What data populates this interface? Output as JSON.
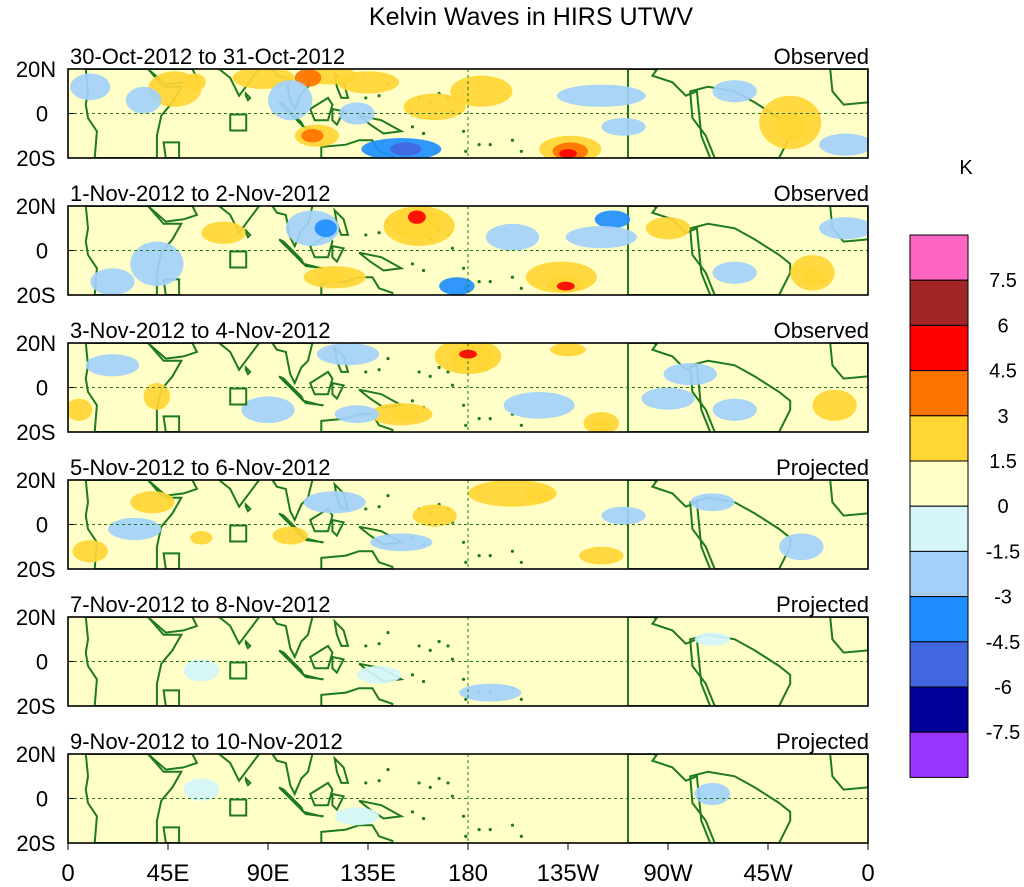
{
  "chart_data": {
    "type": "heatmap",
    "title": "Kelvin Waves in HIRS UTWV",
    "variable_unit": "K",
    "colorbar": {
      "levels": [
        "7.5",
        "6",
        "4.5",
        "3",
        "1.5",
        "0",
        "-1.5",
        "-3",
        "-4.5",
        "-6",
        "-7.5"
      ],
      "colors": [
        "#ff66c4",
        "#a32626",
        "#ff0000",
        "#ff7300",
        "#ffd633",
        "#ffffc7",
        "#d4f5fa",
        "#a3d1fa",
        "#1f8fff",
        "#4066e0",
        "#000099",
        "#9933ff"
      ]
    },
    "x_ticks": [
      "0",
      "45E",
      "90E",
      "135E",
      "180",
      "135W",
      "90W",
      "45W",
      "0"
    ],
    "y_ticks": [
      "20N",
      "0",
      "20S"
    ],
    "x_range_deg_east": [
      0,
      360
    ],
    "y_range_deg": [
      -20,
      20
    ],
    "panels": [
      {
        "period": "30-Oct-2012 to 31-Oct-2012",
        "status": "Observed",
        "anomalies": [
          {
            "lon": 48,
            "lat": 11,
            "rx": 12,
            "ry": 8,
            "value": 2
          },
          {
            "lon": 57,
            "lat": 14,
            "rx": 5,
            "ry": 4,
            "value": 3
          },
          {
            "lon": 10,
            "lat": 12,
            "rx": 9,
            "ry": 6,
            "value": -2
          },
          {
            "lon": 34,
            "lat": 6,
            "rx": 8,
            "ry": 6,
            "value": -2
          },
          {
            "lon": 88,
            "lat": 16,
            "rx": 14,
            "ry": 5,
            "value": 2
          },
          {
            "lon": 118,
            "lat": 17,
            "rx": 12,
            "ry": 4,
            "value": 3
          },
          {
            "lon": 108,
            "lat": 16,
            "rx": 6,
            "ry": 4,
            "value": 4
          },
          {
            "lon": 135,
            "lat": 14,
            "rx": 14,
            "ry": 5,
            "value": 2
          },
          {
            "lon": 100,
            "lat": 6,
            "rx": 10,
            "ry": 9,
            "value": -2
          },
          {
            "lon": 112,
            "lat": -10,
            "rx": 10,
            "ry": 5,
            "value": 2
          },
          {
            "lon": 110,
            "lat": -10,
            "rx": 5,
            "ry": 3,
            "value": 4
          },
          {
            "lon": 150,
            "lat": -16,
            "rx": 18,
            "ry": 5,
            "value": -3
          },
          {
            "lon": 152,
            "lat": -16,
            "rx": 7,
            "ry": 3,
            "value": -5
          },
          {
            "lon": 130,
            "lat": 0,
            "rx": 8,
            "ry": 5,
            "value": -2
          },
          {
            "lon": 165,
            "lat": 3,
            "rx": 14,
            "ry": 6,
            "value": 2
          },
          {
            "lon": 186,
            "lat": 10,
            "rx": 14,
            "ry": 7,
            "value": 2
          },
          {
            "lon": 226,
            "lat": -16,
            "rx": 14,
            "ry": 6,
            "value": 2
          },
          {
            "lon": 226,
            "lat": -17,
            "rx": 8,
            "ry": 4,
            "value": 4
          },
          {
            "lon": 225,
            "lat": -18,
            "rx": 4,
            "ry": 2,
            "value": 6
          },
          {
            "lon": 240,
            "lat": 8,
            "rx": 20,
            "ry": 5,
            "value": -2
          },
          {
            "lon": 250,
            "lat": -6,
            "rx": 10,
            "ry": 4,
            "value": -2
          },
          {
            "lon": 325,
            "lat": -4,
            "rx": 14,
            "ry": 12,
            "value": 2
          },
          {
            "lon": 325,
            "lat": -6,
            "rx": 7,
            "ry": 6,
            "value": 3
          },
          {
            "lon": 300,
            "lat": 10,
            "rx": 10,
            "ry": 5,
            "value": -2
          },
          {
            "lon": 350,
            "lat": -14,
            "rx": 12,
            "ry": 5,
            "value": -2
          }
        ]
      },
      {
        "period": "1-Nov-2012 to 2-Nov-2012",
        "status": "Observed",
        "anomalies": [
          {
            "lon": 40,
            "lat": -6,
            "rx": 12,
            "ry": 10,
            "value": -2
          },
          {
            "lon": 70,
            "lat": 8,
            "rx": 10,
            "ry": 5,
            "value": 2
          },
          {
            "lon": 20,
            "lat": -14,
            "rx": 10,
            "ry": 6,
            "value": -2
          },
          {
            "lon": 110,
            "lat": 10,
            "rx": 12,
            "ry": 8,
            "value": -2
          },
          {
            "lon": 116,
            "lat": 10,
            "rx": 5,
            "ry": 4,
            "value": -4
          },
          {
            "lon": 158,
            "lat": 11,
            "rx": 16,
            "ry": 9,
            "value": 2
          },
          {
            "lon": 157,
            "lat": 12,
            "rx": 11,
            "ry": 7,
            "value": 3
          },
          {
            "lon": 157,
            "lat": 15,
            "rx": 4,
            "ry": 3,
            "value": 5
          },
          {
            "lon": 120,
            "lat": -12,
            "rx": 14,
            "ry": 5,
            "value": 2
          },
          {
            "lon": 118,
            "lat": -12,
            "rx": 6,
            "ry": 3,
            "value": 3
          },
          {
            "lon": 175,
            "lat": -16,
            "rx": 8,
            "ry": 4,
            "value": -3
          },
          {
            "lon": 200,
            "lat": 6,
            "rx": 12,
            "ry": 6,
            "value": -2
          },
          {
            "lon": 222,
            "lat": -12,
            "rx": 16,
            "ry": 7,
            "value": 2
          },
          {
            "lon": 224,
            "lat": -15,
            "rx": 8,
            "ry": 4,
            "value": 3
          },
          {
            "lon": 224,
            "lat": -16,
            "rx": 4,
            "ry": 2,
            "value": 5
          },
          {
            "lon": 245,
            "lat": 14,
            "rx": 8,
            "ry": 4,
            "value": -3
          },
          {
            "lon": 240,
            "lat": 6,
            "rx": 16,
            "ry": 5,
            "value": -2
          },
          {
            "lon": 270,
            "lat": 10,
            "rx": 10,
            "ry": 5,
            "value": 2
          },
          {
            "lon": 335,
            "lat": -10,
            "rx": 10,
            "ry": 8,
            "value": 2
          },
          {
            "lon": 335,
            "lat": -12,
            "rx": 5,
            "ry": 4,
            "value": 3
          },
          {
            "lon": 300,
            "lat": -10,
            "rx": 10,
            "ry": 5,
            "value": -2
          },
          {
            "lon": 350,
            "lat": 10,
            "rx": 12,
            "ry": 5,
            "value": -2
          }
        ]
      },
      {
        "period": "3-Nov-2012 to 4-Nov-2012",
        "status": "Observed",
        "anomalies": [
          {
            "lon": 40,
            "lat": -4,
            "rx": 6,
            "ry": 6,
            "value": 2
          },
          {
            "lon": 5,
            "lat": -10,
            "rx": 6,
            "ry": 5,
            "value": 2
          },
          {
            "lon": 20,
            "lat": 10,
            "rx": 12,
            "ry": 5,
            "value": -2
          },
          {
            "lon": 126,
            "lat": 15,
            "rx": 14,
            "ry": 5,
            "value": -2
          },
          {
            "lon": 90,
            "lat": -10,
            "rx": 12,
            "ry": 6,
            "value": -2
          },
          {
            "lon": 180,
            "lat": 14,
            "rx": 15,
            "ry": 8,
            "value": 2
          },
          {
            "lon": 182,
            "lat": 13,
            "rx": 10,
            "ry": 6,
            "value": 3
          },
          {
            "lon": 180,
            "lat": 15,
            "rx": 4,
            "ry": 2,
            "value": 5
          },
          {
            "lon": 150,
            "lat": -12,
            "rx": 14,
            "ry": 5,
            "value": 2
          },
          {
            "lon": 152,
            "lat": -12,
            "rx": 6,
            "ry": 3,
            "value": 3
          },
          {
            "lon": 130,
            "lat": -12,
            "rx": 10,
            "ry": 4,
            "value": -2
          },
          {
            "lon": 225,
            "lat": 17,
            "rx": 8,
            "ry": 3,
            "value": 2
          },
          {
            "lon": 212,
            "lat": -8,
            "rx": 16,
            "ry": 6,
            "value": -2
          },
          {
            "lon": 240,
            "lat": -16,
            "rx": 8,
            "ry": 5,
            "value": 2
          },
          {
            "lon": 240,
            "lat": -17,
            "rx": 4,
            "ry": 3,
            "value": 3
          },
          {
            "lon": 280,
            "lat": 6,
            "rx": 12,
            "ry": 5,
            "value": -2
          },
          {
            "lon": 300,
            "lat": -10,
            "rx": 10,
            "ry": 5,
            "value": -2
          },
          {
            "lon": 345,
            "lat": -8,
            "rx": 10,
            "ry": 7,
            "value": 2
          },
          {
            "lon": 270,
            "lat": -5,
            "rx": 12,
            "ry": 5,
            "value": -2
          }
        ]
      },
      {
        "period": "5-Nov-2012 to 6-Nov-2012",
        "status": "Projected",
        "anomalies": [
          {
            "lon": 200,
            "lat": 14,
            "rx": 20,
            "ry": 6,
            "value": 2
          },
          {
            "lon": 211,
            "lat": 13,
            "rx": 6,
            "ry": 3,
            "value": 3
          },
          {
            "lon": 60,
            "lat": -6,
            "rx": 5,
            "ry": 3,
            "value": 2
          },
          {
            "lon": 10,
            "lat": -12,
            "rx": 8,
            "ry": 5,
            "value": 2
          },
          {
            "lon": 38,
            "lat": 10,
            "rx": 10,
            "ry": 5,
            "value": 2
          },
          {
            "lon": 30,
            "lat": -2,
            "rx": 12,
            "ry": 5,
            "value": -2
          },
          {
            "lon": 120,
            "lat": 10,
            "rx": 14,
            "ry": 5,
            "value": -2
          },
          {
            "lon": 150,
            "lat": -8,
            "rx": 14,
            "ry": 4,
            "value": -2
          },
          {
            "lon": 100,
            "lat": -5,
            "rx": 8,
            "ry": 4,
            "value": 2
          },
          {
            "lon": 165,
            "lat": 4,
            "rx": 10,
            "ry": 5,
            "value": 2
          },
          {
            "lon": 240,
            "lat": -14,
            "rx": 10,
            "ry": 4,
            "value": 2
          },
          {
            "lon": 330,
            "lat": -10,
            "rx": 10,
            "ry": 6,
            "value": -2
          },
          {
            "lon": 290,
            "lat": 10,
            "rx": 10,
            "ry": 4,
            "value": -2
          },
          {
            "lon": 250,
            "lat": 4,
            "rx": 10,
            "ry": 4,
            "value": -2
          }
        ]
      },
      {
        "period": "7-Nov-2012 to 8-Nov-2012",
        "status": "Projected",
        "anomalies": [
          {
            "lon": 190,
            "lat": -14,
            "rx": 14,
            "ry": 4,
            "value": -2
          },
          {
            "lon": 60,
            "lat": -4,
            "rx": 8,
            "ry": 5,
            "value": -1
          },
          {
            "lon": 140,
            "lat": -6,
            "rx": 10,
            "ry": 4,
            "value": -1
          },
          {
            "lon": 290,
            "lat": 10,
            "rx": 8,
            "ry": 3,
            "value": -1
          }
        ]
      },
      {
        "period": "9-Nov-2012 to 10-Nov-2012",
        "status": "Projected",
        "anomalies": [
          {
            "lon": 290,
            "lat": 2,
            "rx": 8,
            "ry": 5,
            "value": -2
          },
          {
            "lon": 60,
            "lat": 4,
            "rx": 8,
            "ry": 5,
            "value": -1
          },
          {
            "lon": 130,
            "lat": -8,
            "rx": 10,
            "ry": 4,
            "value": -1
          }
        ]
      }
    ]
  }
}
